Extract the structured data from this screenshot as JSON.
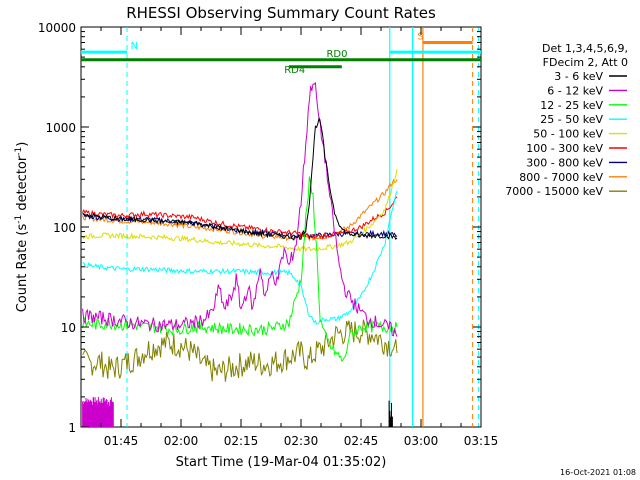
{
  "chart_data": {
    "type": "line",
    "title": "RHESSI Observing Summary Count Rates",
    "xlabel": "Start Time (19-Mar-04 01:35:02)",
    "ylabel": "Count Rate (s⁻¹ detector⁻¹)",
    "ylabel_parts": {
      "main": "Count Rate (s",
      "exp1": "-1",
      "mid": " detector",
      "exp2": "-1",
      "end": ")"
    },
    "y_scale": "log",
    "ylim": [
      1,
      10000
    ],
    "xlim": [
      1.5833,
      3.25
    ],
    "x_ticks": [
      {
        "label": "01:45",
        "value": 1.75
      },
      {
        "label": "02:00",
        "value": 2.0
      },
      {
        "label": "02:15",
        "value": 2.25
      },
      {
        "label": "02:30",
        "value": 2.5
      },
      {
        "label": "02:45",
        "value": 2.75
      },
      {
        "label": "03:00",
        "value": 3.0
      },
      {
        "label": "03:15",
        "value": 3.25
      }
    ],
    "y_ticks": [
      {
        "label": "1",
        "value": 1
      },
      {
        "label": "10",
        "value": 10
      },
      {
        "label": "100",
        "value": 100
      },
      {
        "label": "1000",
        "value": 1000
      },
      {
        "label": "10000",
        "value": 10000
      }
    ],
    "legend": {
      "placement": "right",
      "header": [
        "Det 1,3,4,5,6,9,",
        "FDecim 2, Att 0"
      ]
    },
    "series": [
      {
        "name": "3 - 6 keV",
        "color": "#000000",
        "points": [
          [
            1.59,
            135
          ],
          [
            1.65,
            128
          ],
          [
            1.75,
            120
          ],
          [
            1.85,
            118
          ],
          [
            1.95,
            112
          ],
          [
            2.05,
            110
          ],
          [
            2.15,
            100
          ],
          [
            2.25,
            92
          ],
          [
            2.33,
            85
          ],
          [
            2.4,
            82
          ],
          [
            2.45,
            80
          ],
          [
            2.48,
            78
          ],
          [
            2.5,
            80
          ],
          [
            2.52,
            95
          ],
          [
            2.535,
            180
          ],
          [
            2.55,
            500
          ],
          [
            2.56,
            1000
          ],
          [
            2.575,
            1150
          ],
          [
            2.585,
            1000
          ],
          [
            2.6,
            500
          ],
          [
            2.62,
            250
          ],
          [
            2.64,
            140
          ],
          [
            2.67,
            95
          ],
          [
            2.7,
            85
          ],
          [
            2.75,
            82
          ],
          [
            2.8,
            82
          ],
          [
            2.85,
            82
          ],
          [
            2.88,
            80
          ],
          [
            2.9,
            78
          ]
        ]
      },
      {
        "name": "6 - 12 keV",
        "color": "#cc00cc",
        "points": [
          [
            1.59,
            13
          ],
          [
            1.7,
            12
          ],
          [
            1.8,
            11
          ],
          [
            1.9,
            10.5
          ],
          [
            2.0,
            10.5
          ],
          [
            2.05,
            11
          ],
          [
            2.1,
            12
          ],
          [
            2.13,
            14
          ],
          [
            2.16,
            25
          ],
          [
            2.18,
            15
          ],
          [
            2.21,
            20
          ],
          [
            2.23,
            30
          ],
          [
            2.25,
            15
          ],
          [
            2.28,
            25
          ],
          [
            2.3,
            15
          ],
          [
            2.33,
            40
          ],
          [
            2.35,
            20
          ],
          [
            2.38,
            35
          ],
          [
            2.4,
            28
          ],
          [
            2.43,
            60
          ],
          [
            2.45,
            40
          ],
          [
            2.48,
            70
          ],
          [
            2.5,
            180
          ],
          [
            2.52,
            700
          ],
          [
            2.535,
            2000
          ],
          [
            2.55,
            3000
          ],
          [
            2.56,
            2400
          ],
          [
            2.575,
            1200
          ],
          [
            2.6,
            500
          ],
          [
            2.62,
            200
          ],
          [
            2.64,
            90
          ],
          [
            2.66,
            40
          ],
          [
            2.68,
            25
          ],
          [
            2.7,
            20
          ],
          [
            2.74,
            15
          ],
          [
            2.78,
            12
          ],
          [
            2.82,
            11
          ],
          [
            2.86,
            10
          ],
          [
            2.89,
            9
          ],
          [
            2.9,
            8
          ]
        ]
      },
      {
        "name": "12 - 25 keV",
        "color": "#00ff00",
        "points": [
          [
            1.59,
            11
          ],
          [
            1.65,
            10.5
          ],
          [
            1.7,
            11
          ],
          [
            1.75,
            10.5
          ],
          [
            1.8,
            10.5
          ],
          [
            1.85,
            10
          ],
          [
            1.9,
            10
          ],
          [
            1.95,
            9.5
          ],
          [
            2.0,
            9.5
          ],
          [
            2.05,
            10
          ],
          [
            2.1,
            10
          ],
          [
            2.15,
            9.8
          ],
          [
            2.2,
            9.5
          ],
          [
            2.25,
            9.6
          ],
          [
            2.3,
            9.4
          ],
          [
            2.35,
            9.5
          ],
          [
            2.4,
            10
          ],
          [
            2.45,
            11
          ],
          [
            2.5,
            30
          ],
          [
            2.52,
            120
          ],
          [
            2.535,
            280
          ],
          [
            2.55,
            200
          ],
          [
            2.565,
            60
          ],
          [
            2.58,
            12
          ],
          [
            2.6,
            8
          ],
          [
            2.63,
            6
          ],
          [
            2.66,
            5
          ],
          [
            2.68,
            4.5
          ],
          [
            2.7,
            8
          ],
          [
            2.75,
            10
          ],
          [
            2.8,
            10
          ],
          [
            2.85,
            10
          ],
          [
            2.88,
            10
          ],
          [
            2.9,
            10
          ]
        ]
      },
      {
        "name": "25 - 50 keV",
        "color": "#00ffff",
        "points": [
          [
            1.59,
            42
          ],
          [
            1.65,
            40
          ],
          [
            1.75,
            38
          ],
          [
            1.85,
            38
          ],
          [
            1.95,
            37
          ],
          [
            2.05,
            36
          ],
          [
            2.15,
            36
          ],
          [
            2.25,
            36
          ],
          [
            2.33,
            35
          ],
          [
            2.4,
            35
          ],
          [
            2.45,
            35
          ],
          [
            2.48,
            30
          ],
          [
            2.5,
            25
          ],
          [
            2.53,
            14
          ],
          [
            2.56,
            11
          ],
          [
            2.6,
            12
          ],
          [
            2.65,
            12
          ],
          [
            2.7,
            14
          ],
          [
            2.75,
            20
          ],
          [
            2.8,
            35
          ],
          [
            2.85,
            70
          ],
          [
            2.88,
            150
          ],
          [
            2.9,
            230
          ]
        ]
      },
      {
        "name": "50 - 100 keV",
        "color": "#dddd00",
        "points": [
          [
            1.59,
            80
          ],
          [
            1.65,
            82
          ],
          [
            1.75,
            82
          ],
          [
            1.85,
            80
          ],
          [
            1.95,
            78
          ],
          [
            2.05,
            75
          ],
          [
            2.15,
            70
          ],
          [
            2.25,
            68
          ],
          [
            2.33,
            65
          ],
          [
            2.4,
            64
          ],
          [
            2.45,
            62
          ],
          [
            2.5,
            60
          ],
          [
            2.55,
            60
          ],
          [
            2.6,
            62
          ],
          [
            2.65,
            65
          ],
          [
            2.7,
            70
          ],
          [
            2.75,
            85
          ],
          [
            2.8,
            110
          ],
          [
            2.85,
            150
          ],
          [
            2.88,
            250
          ],
          [
            2.9,
            380
          ]
        ]
      },
      {
        "name": "100 - 300 keV",
        "color": "#ff0000",
        "points": [
          [
            1.59,
            140
          ],
          [
            1.65,
            135
          ],
          [
            1.75,
            130
          ],
          [
            1.85,
            135
          ],
          [
            1.95,
            130
          ],
          [
            2.05,
            125
          ],
          [
            2.15,
            110
          ],
          [
            2.25,
            100
          ],
          [
            2.33,
            95
          ],
          [
            2.4,
            90
          ],
          [
            2.45,
            88
          ],
          [
            2.5,
            85
          ],
          [
            2.55,
            80
          ],
          [
            2.6,
            82
          ],
          [
            2.65,
            85
          ],
          [
            2.7,
            90
          ],
          [
            2.75,
            100
          ],
          [
            2.8,
            120
          ],
          [
            2.85,
            140
          ],
          [
            2.88,
            170
          ],
          [
            2.9,
            200
          ]
        ]
      },
      {
        "name": "300 - 800 keV",
        "color": "#000080",
        "points": [
          [
            1.59,
            130
          ],
          [
            1.65,
            125
          ],
          [
            1.75,
            120
          ],
          [
            1.85,
            120
          ],
          [
            1.95,
            115
          ],
          [
            2.05,
            110
          ],
          [
            2.15,
            100
          ],
          [
            2.25,
            92
          ],
          [
            2.33,
            88
          ],
          [
            2.4,
            85
          ],
          [
            2.45,
            83
          ],
          [
            2.5,
            82
          ],
          [
            2.55,
            82
          ],
          [
            2.6,
            83
          ],
          [
            2.65,
            85
          ],
          [
            2.7,
            85
          ],
          [
            2.75,
            85
          ],
          [
            2.8,
            86
          ],
          [
            2.85,
            86
          ],
          [
            2.88,
            84
          ],
          [
            2.9,
            82
          ]
        ]
      },
      {
        "name": "800 - 7000 keV",
        "color": "#ff8000",
        "points": [
          [
            1.59,
            125
          ],
          [
            1.65,
            120
          ],
          [
            1.75,
            115
          ],
          [
            1.85,
            112
          ],
          [
            1.95,
            108
          ],
          [
            2.05,
            100
          ],
          [
            2.15,
            95
          ],
          [
            2.25,
            88
          ],
          [
            2.33,
            82
          ],
          [
            2.4,
            80
          ],
          [
            2.45,
            78
          ],
          [
            2.5,
            78
          ],
          [
            2.55,
            78
          ],
          [
            2.6,
            80
          ],
          [
            2.65,
            88
          ],
          [
            2.7,
            100
          ],
          [
            2.75,
            130
          ],
          [
            2.8,
            170
          ],
          [
            2.85,
            220
          ],
          [
            2.88,
            280
          ],
          [
            2.9,
            300
          ]
        ]
      },
      {
        "name": "7000 - 15000 keV",
        "color": "#808000",
        "points": [
          [
            1.59,
            4.5
          ],
          [
            1.62,
            4.3
          ],
          [
            1.66,
            4.5
          ],
          [
            1.7,
            3.8
          ],
          [
            1.74,
            4.0
          ],
          [
            1.78,
            4.5
          ],
          [
            1.82,
            5.0
          ],
          [
            1.86,
            6.0
          ],
          [
            1.9,
            6.5
          ],
          [
            1.95,
            7.0
          ],
          [
            2.0,
            6.5
          ],
          [
            2.05,
            5.5
          ],
          [
            2.1,
            4.0
          ],
          [
            2.15,
            3.5
          ],
          [
            2.2,
            3.8
          ],
          [
            2.25,
            4.2
          ],
          [
            2.3,
            4.5
          ],
          [
            2.35,
            4.2
          ],
          [
            2.4,
            4.5
          ],
          [
            2.45,
            5.0
          ],
          [
            2.5,
            5.5
          ],
          [
            2.53,
            4.5
          ],
          [
            2.56,
            5.5
          ],
          [
            2.6,
            6.5
          ],
          [
            2.65,
            8.5
          ],
          [
            2.7,
            9.0
          ],
          [
            2.75,
            9.0
          ],
          [
            2.8,
            8.5
          ],
          [
            2.85,
            7.0
          ],
          [
            2.88,
            6.5
          ],
          [
            2.9,
            5.5
          ]
        ]
      }
    ],
    "extras": {
      "magenta_baseline": {
        "color": "#cc00cc",
        "x": [
          1.59,
          1.72
        ],
        "y_range": [
          1.6,
          2.0
        ]
      },
      "black_dropout": {
        "color": "#000000",
        "x": 2.875,
        "y_range": [
          1,
          2
        ]
      },
      "dashed_verticals": [
        {
          "x": 1.775,
          "color": "#00ffff"
        },
        {
          "x": 3.215,
          "color": "#ff8000"
        },
        {
          "x": 3.24,
          "color": "#00ffff"
        }
      ],
      "solid_verticals": [
        {
          "x": 2.87,
          "color": "#00ffff"
        },
        {
          "x": 2.965,
          "color": "#00ffff"
        },
        {
          "x": 3.008,
          "color": "#ff8000"
        }
      ]
    },
    "flag_bars": [
      {
        "label": "N",
        "color": "#00ffff",
        "x": [
          1.583,
          1.775
        ],
        "y": 5600
      },
      {
        "label": "RD0",
        "color": "#008000",
        "x": [
          1.583,
          3.25
        ],
        "y": 4700
      },
      {
        "label": "RD4",
        "color": "#008000",
        "x": [
          2.45,
          2.67
        ],
        "y": 4000
      },
      {
        "label": "S",
        "color": "#ff8000",
        "x": [
          3.008,
          3.215
        ],
        "y": 7000
      },
      {
        "label": "",
        "color": "#00ffff",
        "x": [
          2.87,
          3.25
        ],
        "y": 5600
      }
    ],
    "footer_date": "16-Oct-2021 01:08"
  }
}
